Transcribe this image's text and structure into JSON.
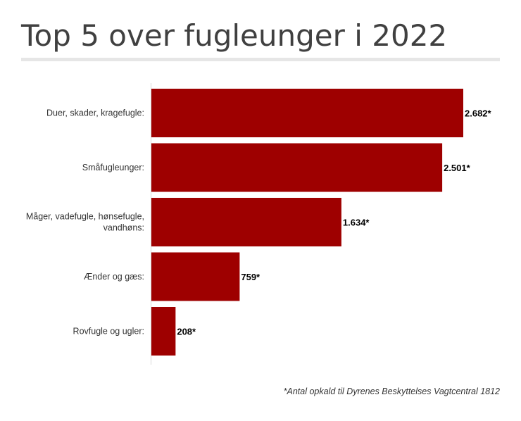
{
  "chart_data": {
    "type": "bar",
    "orientation": "horizontal",
    "title": "Top 5 over fugleunger i 2022",
    "categories": [
      [
        "Duer, skader, kragefugle:"
      ],
      [
        "Småfugleunger:"
      ],
      [
        "Måger, vadefugle, hønsefugle,",
        "vandhøns:"
      ],
      [
        "Ænder og gæs:"
      ],
      [
        "Rovfugle og ugler:"
      ]
    ],
    "values": [
      2682,
      2501,
      1634,
      759,
      208
    ],
    "value_labels": [
      "2.682*",
      "2.501*",
      "1.634*",
      "759*",
      "208*"
    ],
    "xlim": [
      0,
      2682
    ],
    "bar_color": "#9e0000",
    "grid": false,
    "footnote": "*Antal opkald til Dyrenes Beskyttelses Vagtcentral 1812"
  }
}
